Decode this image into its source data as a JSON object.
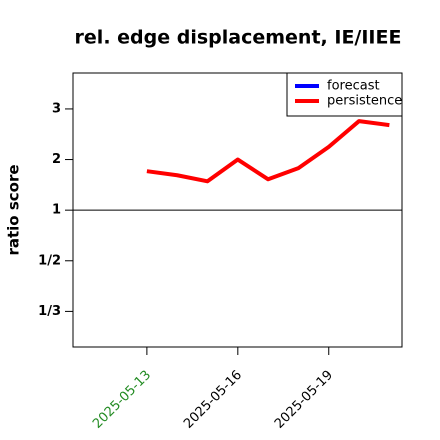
{
  "chart_data": {
    "type": "line",
    "title": "rel. edge displacement, IE/IIEE",
    "y_label": "ratio score",
    "y_scale": "ratio",
    "x": [
      "2025-05-13",
      "2025-05-14",
      "2025-05-15",
      "2025-05-16",
      "2025-05-17",
      "2025-05-18",
      "2025-05-19",
      "2025-05-20",
      "2025-05-21"
    ],
    "series": [
      {
        "name": "forecast",
        "color": "#0000ff",
        "values": [
          null,
          null,
          null,
          null,
          null,
          null,
          null,
          null,
          null
        ]
      },
      {
        "name": "persistence",
        "color": "#ff0000",
        "values": [
          1.77,
          1.69,
          1.57,
          2.0,
          1.61,
          1.83,
          2.25,
          2.76,
          2.68
        ]
      }
    ],
    "xlim": [
      "2025-05-10T13:30Z",
      "2025-05-21T10:00Z"
    ],
    "xticks": [
      "2025-05-13",
      "2025-05-16",
      "2025-05-19"
    ],
    "xtick_label_colors": [
      "#228b22",
      "#000000",
      "#000000"
    ],
    "ylim": [
      0.27,
      3.71
    ],
    "yticks": [
      3,
      2,
      1,
      {
        "value": 0.5,
        "label": "1/2"
      },
      {
        "value": 0.3333,
        "label": "1/3"
      }
    ],
    "reference_line": 1,
    "legend": "top-right"
  }
}
